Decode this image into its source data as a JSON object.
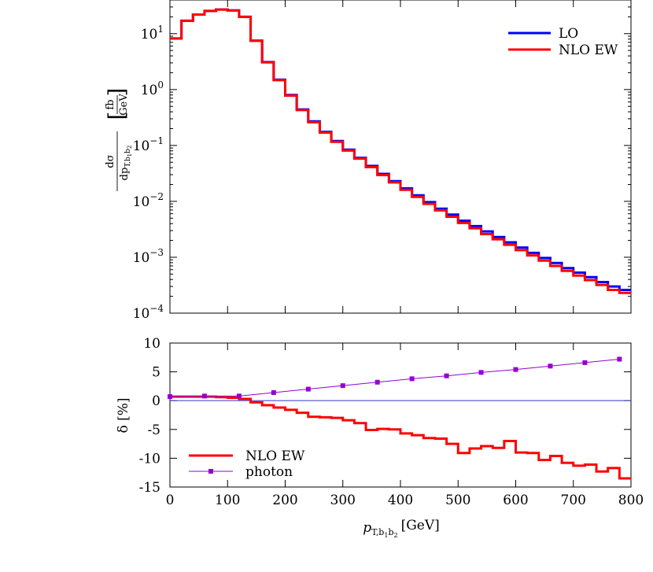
{
  "chart_data": [
    {
      "type": "line",
      "panel": "upper",
      "yscale": "log",
      "xlim": [
        0,
        800
      ],
      "ylim": [
        0.0001,
        40
      ],
      "ylabel": {
        "num": "dσ",
        "den_prefix": "dp",
        "den_sub": "T,b",
        "den_sub2": "1",
        "den_sub3": "b",
        "den_sub4": "2",
        "unit_num": "fb",
        "unit_den": "GeV"
      },
      "ytick_values": [
        0.0001,
        0.001,
        0.01,
        0.1,
        1,
        10
      ],
      "ytick_base": "10",
      "ytick_exps": [
        "−4",
        "−3",
        "−2",
        "−1",
        "0",
        "1"
      ],
      "bin_edges": [
        0,
        20,
        40,
        60,
        80,
        100,
        120,
        140,
        160,
        180,
        200,
        220,
        240,
        260,
        280,
        300,
        320,
        340,
        360,
        380,
        400,
        420,
        440,
        460,
        480,
        500,
        520,
        540,
        560,
        580,
        600,
        620,
        640,
        660,
        680,
        700,
        720,
        740,
        760,
        780,
        800
      ],
      "legend_position": "top-right",
      "series": [
        {
          "name": "LO",
          "color": "#0000ff",
          "values": [
            8.2,
            17,
            22,
            25.5,
            27,
            26,
            20,
            7.5,
            3.1,
            1.5,
            0.8,
            0.44,
            0.27,
            0.175,
            0.12,
            0.084,
            0.06,
            0.043,
            0.031,
            0.023,
            0.0171,
            0.0128,
            0.0097,
            0.0074,
            0.0058,
            0.0045,
            0.0036,
            0.0029,
            0.0023,
            0.00185,
            0.00149,
            0.0012,
            0.00097,
            0.00079,
            0.00064,
            0.00053,
            0.00044,
            0.00036,
            0.0003,
            0.00026
          ]
        },
        {
          "name": "NLO EW",
          "color": "#ff0000",
          "values": [
            8.2,
            17,
            22,
            25.5,
            27,
            26,
            20,
            7.45,
            3.07,
            1.47,
            0.78,
            0.43,
            0.26,
            0.17,
            0.116,
            0.081,
            0.058,
            0.041,
            0.0295,
            0.0218,
            0.0161,
            0.012,
            0.009,
            0.0069,
            0.0053,
            0.0041,
            0.0033,
            0.0026,
            0.0021,
            0.00167,
            0.00134,
            0.00108,
            0.00087,
            0.0007,
            0.00057,
            0.00047,
            0.00039,
            0.00032,
            0.00026,
            0.00023
          ]
        }
      ]
    },
    {
      "type": "line",
      "panel": "lower",
      "xlim": [
        0,
        800
      ],
      "ylim": [
        -15,
        10
      ],
      "xlabel": {
        "main": "p",
        "sub": "T,b",
        "sub2": "1",
        "sub3": "b",
        "sub4": "2",
        "unit": "[GeV]"
      },
      "ylabel": "δ [%]",
      "xticks": [
        "0",
        "100",
        "200",
        "300",
        "400",
        "500",
        "600",
        "700",
        "800"
      ],
      "xtick_values": [
        0,
        100,
        200,
        300,
        400,
        500,
        600,
        700,
        800
      ],
      "yticks": [
        "10",
        "5",
        "0",
        "-5",
        "-10",
        "-15"
      ],
      "ytick_values": [
        10,
        5,
        0,
        -5,
        -10,
        -15
      ],
      "legend_position": "bottom-left",
      "reference_line": {
        "y": 0,
        "color": "#4b4bd6"
      },
      "series": [
        {
          "name": "NLO EW",
          "color": "#ff0000",
          "bin_edges": [
            0,
            20,
            40,
            60,
            80,
            100,
            120,
            140,
            160,
            180,
            200,
            220,
            240,
            260,
            280,
            300,
            320,
            340,
            360,
            380,
            400,
            420,
            440,
            460,
            480,
            500,
            520,
            540,
            560,
            580,
            600,
            620,
            640,
            660,
            680,
            700,
            720,
            740,
            760,
            780,
            800
          ],
          "values": [
            0.7,
            0.7,
            0.7,
            0.7,
            0.6,
            0.5,
            0.3,
            -0.3,
            -0.8,
            -1.2,
            -1.6,
            -2.1,
            -2.8,
            -2.9,
            -3.0,
            -3.4,
            -3.9,
            -5.1,
            -4.9,
            -5.0,
            -5.7,
            -6.0,
            -6.5,
            -6.6,
            -7.5,
            -9.1,
            -8.3,
            -7.9,
            -8.2,
            -7.0,
            -9.0,
            -9.1,
            -10.3,
            -9.6,
            -10.8,
            -11.3,
            -11.1,
            -12.3,
            -11.7,
            -13.5
          ]
        },
        {
          "name": "photon",
          "color": "#9400d3",
          "x": [
            0,
            60,
            120,
            180,
            240,
            300,
            360,
            420,
            480,
            540,
            600,
            660,
            720,
            780
          ],
          "values": [
            0.7,
            0.8,
            0.8,
            1.4,
            2.0,
            2.6,
            3.2,
            3.8,
            4.3,
            4.9,
            5.4,
            6.0,
            6.6,
            7.2
          ]
        }
      ]
    }
  ]
}
